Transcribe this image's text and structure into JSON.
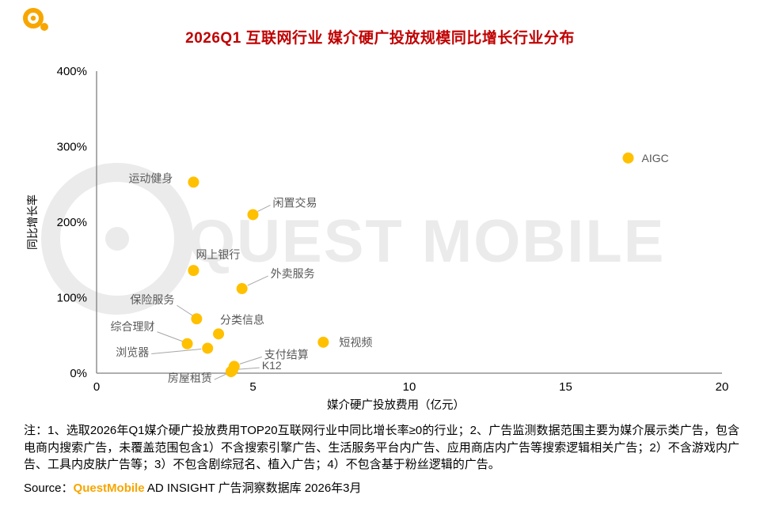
{
  "page": {
    "watermark": "QUEST MOBILE",
    "note": "注：1、选取2026年Q1媒介硬广投放费用TOP20互联网行业中同比增长率≥0的行业；2、广告监测数据范围主要为媒介展示类广告，包含电商内搜索广告，未覆盖范围包含1）不含搜索引擎广告、生活服务平台内广告、应用商店内广告等搜索逻辑相关广告；2）不含游戏内广告、工具内皮肤广告等；3）不包含剧综冠名、植入广告；4）不包含基于粉丝逻辑的广告。",
    "source_prefix": "Source：",
    "source_brand": "QuestMobile",
    "source_rest": " AD INSIGHT 广告洞察数据库 2026年3月"
  },
  "colors": {
    "title": "#C00000",
    "dot": "#FFC000",
    "brand": "#F7A600",
    "label": "#595959",
    "axis": "#7F7F7F",
    "leader": "#A6A6A6",
    "watermark": "#EBEBEB"
  },
  "chart_data": {
    "type": "scatter",
    "title": "2026Q1 互联网行业 媒介硬广投放规模同比增长行业分布",
    "xlabel": "媒介硬广投放费用（亿元）",
    "ylabel": "同比增长率",
    "xlim": [
      0,
      20
    ],
    "ylim_percent": [
      0,
      400
    ],
    "x_ticks": [
      0,
      5,
      10,
      15,
      20
    ],
    "y_ticks": [
      "0%",
      "100%",
      "200%",
      "300%",
      "400%"
    ],
    "grid": false,
    "legend": false,
    "points": [
      {
        "label": "AIGC",
        "x": 17.0,
        "y": 285
      },
      {
        "label": "运动健身",
        "x": 3.1,
        "y": 253
      },
      {
        "label": "闲置交易",
        "x": 5.0,
        "y": 210
      },
      {
        "label": "网上银行",
        "x": 3.1,
        "y": 136
      },
      {
        "label": "外卖服务",
        "x": 4.65,
        "y": 112
      },
      {
        "label": "保险服务",
        "x": 3.2,
        "y": 72
      },
      {
        "label": "分类信息",
        "x": 3.9,
        "y": 52
      },
      {
        "label": "短视频",
        "x": 7.25,
        "y": 41
      },
      {
        "label": "综合理财",
        "x": 2.9,
        "y": 39
      },
      {
        "label": "浏览器",
        "x": 3.55,
        "y": 33
      },
      {
        "label": "支付结算",
        "x": 4.4,
        "y": 9
      },
      {
        "label": "K12",
        "x": 4.35,
        "y": 4
      },
      {
        "label": "房屋租赁",
        "x": 4.3,
        "y": 2
      }
    ]
  }
}
